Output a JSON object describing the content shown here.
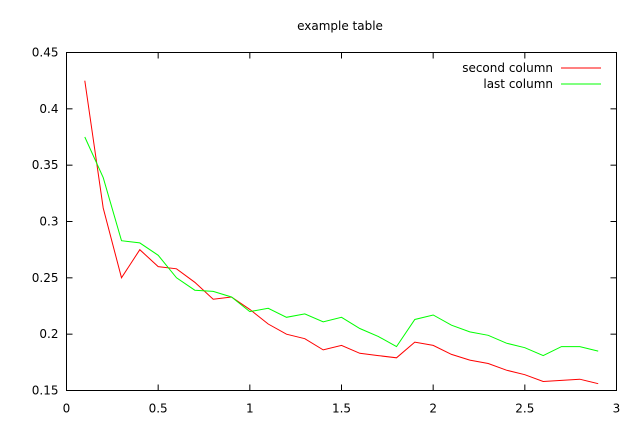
{
  "chart_data": {
    "type": "line",
    "title": "example table",
    "xlabel": "",
    "ylabel": "",
    "xlim": [
      0,
      3
    ],
    "ylim": [
      0.15,
      0.45
    ],
    "xticks": [
      0,
      0.5,
      1,
      1.5,
      2,
      2.5,
      3
    ],
    "xtick_labels": [
      "0",
      "0.5",
      "1",
      "1.5",
      "2",
      "2.5",
      "3"
    ],
    "yticks": [
      0.15,
      0.2,
      0.25,
      0.3,
      0.35,
      0.4,
      0.45
    ],
    "ytick_labels": [
      "0.15",
      "0.2",
      "0.25",
      "0.3",
      "0.35",
      "0.4",
      "0.45"
    ],
    "grid": false,
    "legend_position": "top-right",
    "x": [
      0.1,
      0.2,
      0.3,
      0.4,
      0.5,
      0.6,
      0.7,
      0.8,
      0.9,
      1.0,
      1.1,
      1.2,
      1.3,
      1.4,
      1.5,
      1.6,
      1.7,
      1.8,
      1.9,
      2.0,
      2.1,
      2.2,
      2.3,
      2.4,
      2.5,
      2.6,
      2.7,
      2.8,
      2.9
    ],
    "series": [
      {
        "name": "second column",
        "color": "#ff0000",
        "values": [
          0.425,
          0.312,
          0.25,
          0.275,
          0.26,
          0.258,
          0.246,
          0.231,
          0.233,
          0.222,
          0.209,
          0.2,
          0.196,
          0.186,
          0.19,
          0.183,
          0.181,
          0.179,
          0.193,
          0.19,
          0.182,
          0.177,
          0.174,
          0.168,
          0.164,
          0.158,
          0.159,
          0.16,
          0.156
        ]
      },
      {
        "name": "last column",
        "color": "#00ff00",
        "values": [
          0.375,
          0.339,
          0.283,
          0.281,
          0.27,
          0.25,
          0.239,
          0.238,
          0.233,
          0.22,
          0.223,
          0.215,
          0.218,
          0.211,
          0.215,
          0.205,
          0.198,
          0.189,
          0.213,
          0.217,
          0.208,
          0.202,
          0.199,
          0.192,
          0.188,
          0.181,
          0.189,
          0.189,
          0.185
        ]
      }
    ]
  }
}
